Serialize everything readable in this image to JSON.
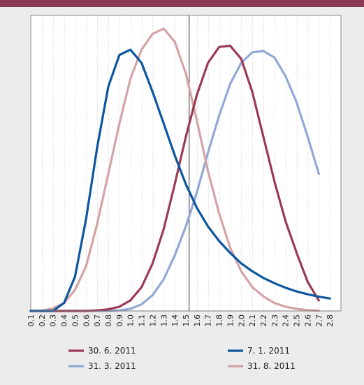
{
  "header": {
    "bar_color": "#8b3a54"
  },
  "chart_data": {
    "type": "line",
    "title": "",
    "xlabel": "",
    "ylabel": "",
    "categories": [
      "0.1",
      "0.2",
      "0.3",
      "0.4",
      "0.5",
      "0.6",
      "0.7",
      "0.8",
      "0.9",
      "1.0",
      "1.1",
      "1.2",
      "1.3",
      "1.4",
      "1.5",
      "1.6",
      "1.7",
      "1.8",
      "1.9",
      "2.0",
      "2.1",
      "2.2",
      "2.3",
      "2.4",
      "2.5",
      "2.6",
      "2.7",
      "2.8"
    ],
    "grid": "vertical dotted",
    "reference_line": {
      "x": 1.53
    },
    "series": [
      {
        "name": "30. 6. 2011",
        "color": "#9b3a55",
        "values": [
          0,
          0,
          0,
          0,
          0,
          0,
          0.002,
          0.006,
          0.016,
          0.04,
          0.09,
          0.18,
          0.31,
          0.48,
          0.66,
          0.82,
          0.94,
          1.0,
          1.005,
          0.955,
          0.83,
          0.66,
          0.49,
          0.34,
          0.22,
          0.11,
          0.04,
          null
        ]
      },
      {
        "name": "7. 1. 2011",
        "color": "#0c56a0",
        "values": [
          0,
          0,
          0,
          0.03,
          0.13,
          0.35,
          0.62,
          0.85,
          0.97,
          0.99,
          0.94,
          0.83,
          0.71,
          0.59,
          0.48,
          0.39,
          0.32,
          0.265,
          0.22,
          0.18,
          0.15,
          0.125,
          0.105,
          0.088,
          0.074,
          0.063,
          0.054,
          0.047
        ]
      },
      {
        "name": "31. 3. 2011",
        "color": "#92a8d6",
        "values": [
          0,
          0,
          0,
          0,
          0,
          0,
          0,
          0,
          0.002,
          0.008,
          0.025,
          0.06,
          0.12,
          0.21,
          0.32,
          0.45,
          0.6,
          0.74,
          0.86,
          0.94,
          0.98,
          0.985,
          0.96,
          0.89,
          0.79,
          0.66,
          0.52,
          null
        ]
      },
      {
        "name": "31. 8. 2011",
        "color": "#d4a3a6",
        "values": [
          0,
          0,
          0.01,
          0.03,
          0.08,
          0.17,
          0.33,
          0.52,
          0.71,
          0.88,
          0.99,
          1.05,
          1.07,
          1.02,
          0.9,
          0.72,
          0.53,
          0.37,
          0.24,
          0.15,
          0.09,
          0.055,
          0.03,
          0.016,
          0.008,
          0.003,
          0.001,
          null
        ]
      }
    ]
  },
  "legend": {
    "position": "bottom",
    "items": [
      {
        "label": "30. 6. 2011",
        "color": "#9b3a55"
      },
      {
        "label": "7. 1. 2011",
        "color": "#0c56a0"
      },
      {
        "label": "31. 3. 2011",
        "color": "#92a8d6"
      },
      {
        "label": "31. 8. 2011",
        "color": "#d4a3a6"
      }
    ]
  }
}
